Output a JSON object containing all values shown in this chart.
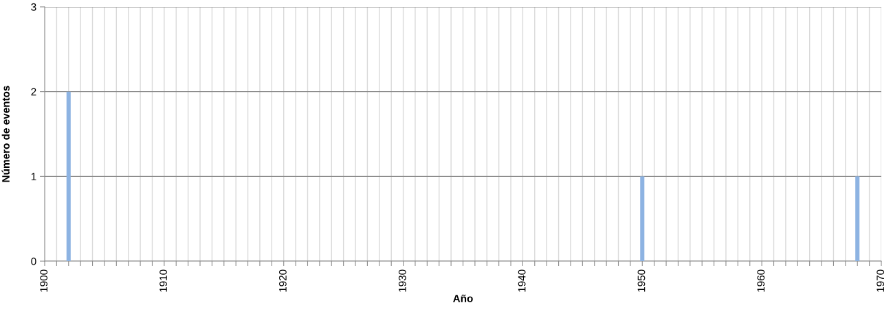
{
  "chart_data": {
    "type": "bar",
    "xlabel": "Año",
    "ylabel": "Número de eventos",
    "x": [
      1902,
      1950,
      1968
    ],
    "series": [
      {
        "color": "#8db3e2",
        "values": [
          2,
          1,
          1
        ]
      }
    ],
    "xlim": [
      1900,
      1970
    ],
    "xticks": [
      1900,
      {
        "value": 1901,
        "label": null
      },
      {
        "value": 1902,
        "label": null
      },
      {
        "value": 1903,
        "label": null
      },
      {
        "value": 1904,
        "label": null
      },
      {
        "value": 1905,
        "label": null
      },
      {
        "value": 1906,
        "label": null
      },
      {
        "value": 1907,
        "label": null
      },
      {
        "value": 1908,
        "label": null
      },
      {
        "value": 1909,
        "label": null
      },
      1910,
      {
        "value": 1911,
        "label": null
      },
      {
        "value": 1912,
        "label": null
      },
      {
        "value": 1913,
        "label": null
      },
      {
        "value": 1914,
        "label": null
      },
      {
        "value": 1915,
        "label": null
      },
      {
        "value": 1916,
        "label": null
      },
      {
        "value": 1917,
        "label": null
      },
      {
        "value": 1918,
        "label": null
      },
      {
        "value": 1919,
        "label": null
      },
      1920,
      {
        "value": 1921,
        "label": null
      },
      {
        "value": 1922,
        "label": null
      },
      {
        "value": 1923,
        "label": null
      },
      {
        "value": 1924,
        "label": null
      },
      {
        "value": 1925,
        "label": null
      },
      {
        "value": 1926,
        "label": null
      },
      {
        "value": 1927,
        "label": null
      },
      {
        "value": 1928,
        "label": null
      },
      {
        "value": 1929,
        "label": null
      },
      1930,
      {
        "value": 1931,
        "label": null
      },
      {
        "value": 1932,
        "label": null
      },
      {
        "value": 1933,
        "label": null
      },
      {
        "value": 1934,
        "label": null
      },
      {
        "value": 1935,
        "label": null
      },
      {
        "value": 1936,
        "label": null
      },
      {
        "value": 1937,
        "label": null
      },
      {
        "value": 1938,
        "label": null
      },
      {
        "value": 1939,
        "label": null
      },
      1940,
      {
        "value": 1941,
        "label": null
      },
      {
        "value": 1942,
        "label": null
      },
      {
        "value": 1943,
        "label": null
      },
      {
        "value": 1944,
        "label": null
      },
      {
        "value": 1945,
        "label": null
      },
      {
        "value": 1946,
        "label": null
      },
      {
        "value": 1947,
        "label": null
      },
      {
        "value": 1948,
        "label": null
      },
      {
        "value": 1949,
        "label": null
      },
      1950,
      {
        "value": 1951,
        "label": null
      },
      {
        "value": 1952,
        "label": null
      },
      {
        "value": 1953,
        "label": null
      },
      {
        "value": 1954,
        "label": null
      },
      {
        "value": 1955,
        "label": null
      },
      {
        "value": 1956,
        "label": null
      },
      {
        "value": 1957,
        "label": null
      },
      {
        "value": 1958,
        "label": null
      },
      {
        "value": 1959,
        "label": null
      },
      1960,
      {
        "value": 1961,
        "label": null
      },
      {
        "value": 1962,
        "label": null
      },
      {
        "value": 1963,
        "label": null
      },
      {
        "value": 1964,
        "label": null
      },
      {
        "value": 1965,
        "label": null
      },
      {
        "value": 1966,
        "label": null
      },
      {
        "value": 1967,
        "label": null
      },
      {
        "value": 1968,
        "label": null
      },
      {
        "value": 1969,
        "label": null
      },
      1970
    ],
    "ylim": [
      0,
      3
    ],
    "yticks": [
      0,
      1,
      2,
      3
    ],
    "grid": true
  }
}
